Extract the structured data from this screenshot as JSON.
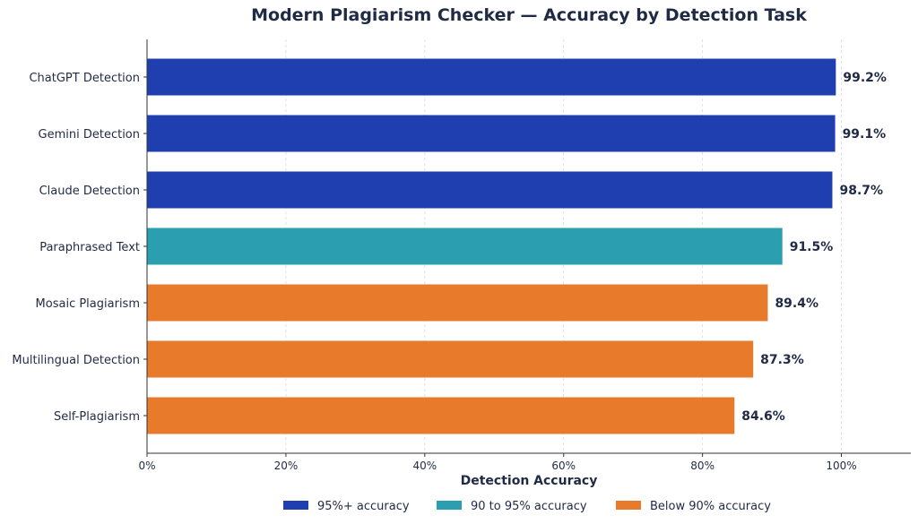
{
  "chart_data": {
    "type": "bar",
    "orientation": "horizontal",
    "title": "Modern Plagiarism Checker — Accuracy by Detection Task",
    "xlabel": "Detection Accuracy",
    "ylabel": "",
    "xlim": [
      0,
      110
    ],
    "x_ticks": [
      0,
      20,
      40,
      60,
      80,
      100
    ],
    "x_tick_labels": [
      "0%",
      "20%",
      "40%",
      "60%",
      "80%",
      "100%"
    ],
    "grid": "x-axis dashed",
    "legend_position": "bottom-center",
    "categories": [
      "ChatGPT Detection",
      "Gemini Detection",
      "Claude Detection",
      "Paraphrased Text",
      "Mosaic Plagiarism",
      "Multilingual Detection",
      "Self-Plagiarism"
    ],
    "values": [
      99.2,
      99.1,
      98.7,
      91.5,
      89.4,
      87.3,
      84.6
    ],
    "value_labels": [
      "99.2%",
      "99.1%",
      "98.7%",
      "91.5%",
      "89.4%",
      "87.3%",
      "84.6%"
    ],
    "bar_groups": [
      "high",
      "high",
      "high",
      "mid",
      "low",
      "low",
      "low"
    ],
    "legend": [
      {
        "key": "high",
        "label": "95%+ accuracy",
        "color": "#1f3fb0"
      },
      {
        "key": "mid",
        "label": "90 to 95% accuracy",
        "color": "#2b9fb0"
      },
      {
        "key": "low",
        "label": "Below 90% accuracy",
        "color": "#e87a2c"
      }
    ]
  }
}
